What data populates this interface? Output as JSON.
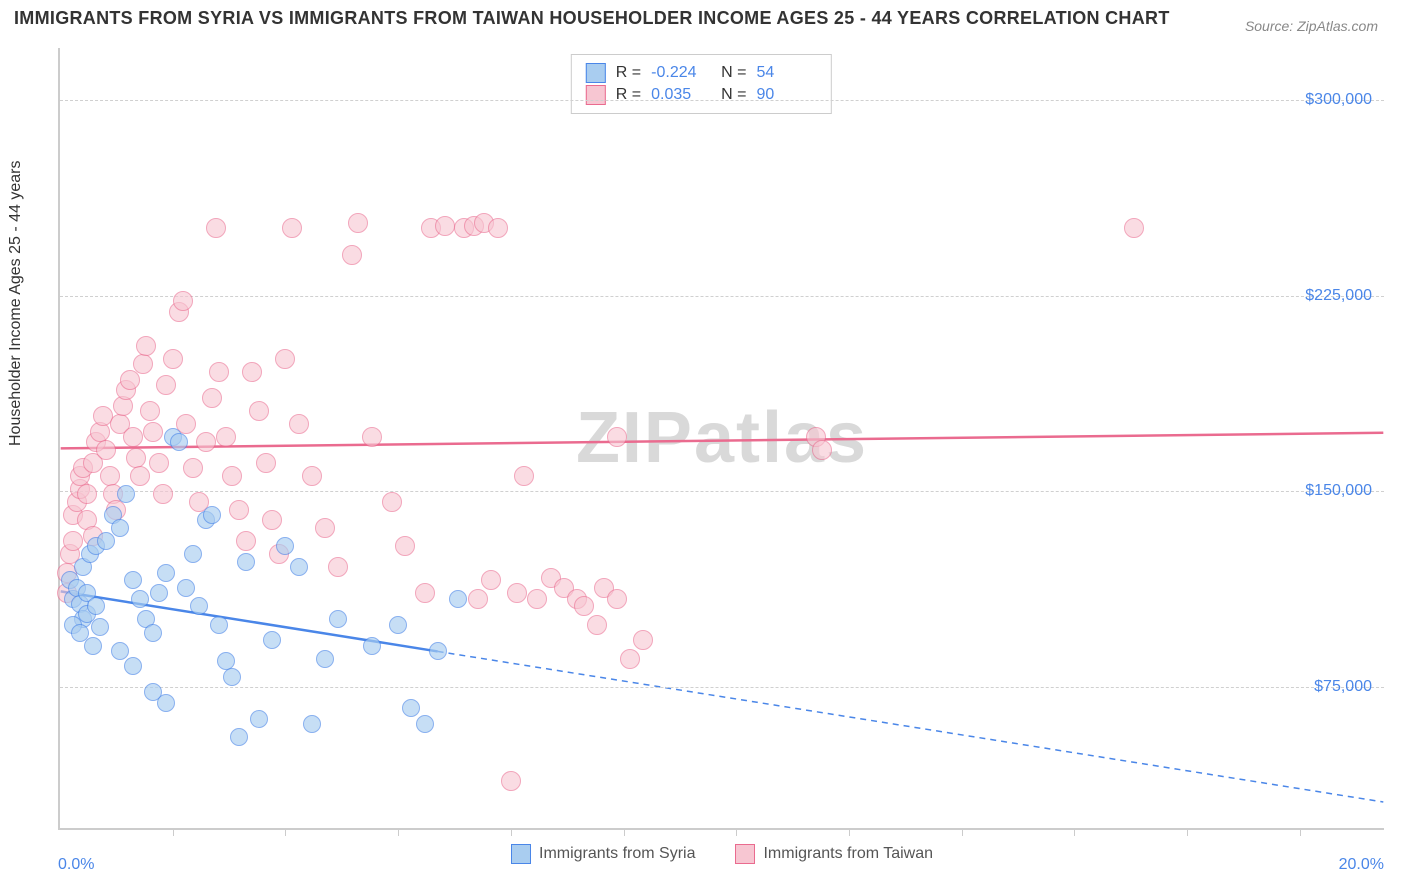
{
  "title": "IMMIGRANTS FROM SYRIA VS IMMIGRANTS FROM TAIWAN HOUSEHOLDER INCOME AGES 25 - 44 YEARS CORRELATION CHART",
  "source": "Source: ZipAtlas.com",
  "watermark": "ZIPatlas",
  "y_axis": {
    "label": "Householder Income Ages 25 - 44 years",
    "min": 20000,
    "max": 320000,
    "ticks": [
      75000,
      150000,
      225000,
      300000
    ],
    "tick_labels": [
      "$75,000",
      "$150,000",
      "$225,000",
      "$300,000"
    ],
    "label_color": "#4a86e8",
    "label_fontsize": 16
  },
  "x_axis": {
    "min": 0.0,
    "max": 20.0,
    "left_label": "0.0%",
    "right_label": "20.0%",
    "tick_positions": [
      1.7,
      3.4,
      5.1,
      6.8,
      8.5,
      10.2,
      11.9,
      13.6,
      15.3,
      17.0,
      18.7
    ],
    "label_color": "#4a86e8"
  },
  "series": {
    "syria": {
      "label": "Immigrants from Syria",
      "fill": "#a9cdf0",
      "stroke": "#4a86e8",
      "opacity": 0.65,
      "R": "-0.224",
      "N": "54",
      "trend": {
        "y_at_xmin": 111000,
        "y_at_xmax": 30000,
        "solid_until_x": 5.7,
        "stroke_width": 2.5
      },
      "radius": 9,
      "points": [
        [
          0.15,
          115000
        ],
        [
          0.2,
          108000
        ],
        [
          0.25,
          112000
        ],
        [
          0.3,
          106000
        ],
        [
          0.35,
          100000
        ],
        [
          0.4,
          110000
        ],
        [
          0.2,
          98000
        ],
        [
          0.3,
          95000
        ],
        [
          0.4,
          102000
        ],
        [
          0.5,
          90000
        ],
        [
          0.55,
          105000
        ],
        [
          0.6,
          97000
        ],
        [
          0.35,
          120000
        ],
        [
          0.45,
          125000
        ],
        [
          0.55,
          128000
        ],
        [
          0.7,
          130000
        ],
        [
          0.8,
          140000
        ],
        [
          0.9,
          135000
        ],
        [
          1.0,
          148000
        ],
        [
          1.1,
          115000
        ],
        [
          1.2,
          108000
        ],
        [
          1.3,
          100000
        ],
        [
          1.4,
          95000
        ],
        [
          1.5,
          110000
        ],
        [
          1.6,
          118000
        ],
        [
          1.7,
          170000
        ],
        [
          1.8,
          168000
        ],
        [
          1.9,
          112000
        ],
        [
          2.0,
          125000
        ],
        [
          2.1,
          105000
        ],
        [
          2.2,
          138000
        ],
        [
          2.3,
          140000
        ],
        [
          2.4,
          98000
        ],
        [
          2.5,
          84000
        ],
        [
          2.6,
          78000
        ],
        [
          2.7,
          55000
        ],
        [
          1.4,
          72000
        ],
        [
          1.6,
          68000
        ],
        [
          0.9,
          88000
        ],
        [
          1.1,
          82000
        ],
        [
          2.8,
          122000
        ],
        [
          3.0,
          62000
        ],
        [
          3.2,
          92000
        ],
        [
          3.4,
          128000
        ],
        [
          3.6,
          120000
        ],
        [
          3.8,
          60000
        ],
        [
          4.0,
          85000
        ],
        [
          4.2,
          100000
        ],
        [
          4.7,
          90000
        ],
        [
          5.1,
          98000
        ],
        [
          5.3,
          66000
        ],
        [
          5.5,
          60000
        ],
        [
          5.7,
          88000
        ],
        [
          6.0,
          108000
        ]
      ]
    },
    "taiwan": {
      "label": "Immigrants from Taiwan",
      "fill": "#f7c6d2",
      "stroke": "#ea6b8f",
      "opacity": 0.6,
      "R": "0.035",
      "N": "90",
      "trend": {
        "y_at_xmin": 166000,
        "y_at_xmax": 172000,
        "stroke_width": 2.5
      },
      "radius": 10,
      "points": [
        [
          0.1,
          110000
        ],
        [
          0.1,
          118000
        ],
        [
          0.15,
          125000
        ],
        [
          0.2,
          130000
        ],
        [
          0.2,
          140000
        ],
        [
          0.25,
          145000
        ],
        [
          0.3,
          150000
        ],
        [
          0.3,
          155000
        ],
        [
          0.35,
          158000
        ],
        [
          0.4,
          148000
        ],
        [
          0.4,
          138000
        ],
        [
          0.5,
          132000
        ],
        [
          0.5,
          160000
        ],
        [
          0.55,
          168000
        ],
        [
          0.6,
          172000
        ],
        [
          0.65,
          178000
        ],
        [
          0.7,
          165000
        ],
        [
          0.75,
          155000
        ],
        [
          0.8,
          148000
        ],
        [
          0.85,
          142000
        ],
        [
          0.9,
          175000
        ],
        [
          0.95,
          182000
        ],
        [
          1.0,
          188000
        ],
        [
          1.05,
          192000
        ],
        [
          1.1,
          170000
        ],
        [
          1.15,
          162000
        ],
        [
          1.2,
          155000
        ],
        [
          1.25,
          198000
        ],
        [
          1.3,
          205000
        ],
        [
          1.35,
          180000
        ],
        [
          1.4,
          172000
        ],
        [
          1.5,
          160000
        ],
        [
          1.55,
          148000
        ],
        [
          1.6,
          190000
        ],
        [
          1.7,
          200000
        ],
        [
          1.8,
          218000
        ],
        [
          1.85,
          222000
        ],
        [
          1.9,
          175000
        ],
        [
          2.0,
          158000
        ],
        [
          2.1,
          145000
        ],
        [
          2.2,
          168000
        ],
        [
          2.3,
          185000
        ],
        [
          2.35,
          250000
        ],
        [
          2.4,
          195000
        ],
        [
          2.5,
          170000
        ],
        [
          2.6,
          155000
        ],
        [
          2.7,
          142000
        ],
        [
          2.8,
          130000
        ],
        [
          2.9,
          195000
        ],
        [
          3.0,
          180000
        ],
        [
          3.1,
          160000
        ],
        [
          3.2,
          138000
        ],
        [
          3.3,
          125000
        ],
        [
          3.4,
          200000
        ],
        [
          3.5,
          250000
        ],
        [
          3.6,
          175000
        ],
        [
          3.8,
          155000
        ],
        [
          4.0,
          135000
        ],
        [
          4.2,
          120000
        ],
        [
          4.4,
          240000
        ],
        [
          4.5,
          252000
        ],
        [
          4.7,
          170000
        ],
        [
          5.0,
          145000
        ],
        [
          5.2,
          128000
        ],
        [
          5.5,
          110000
        ],
        [
          5.6,
          250000
        ],
        [
          5.8,
          251000
        ],
        [
          6.3,
          108000
        ],
        [
          6.1,
          250000
        ],
        [
          6.25,
          251000
        ],
        [
          6.4,
          252000
        ],
        [
          6.6,
          250000
        ],
        [
          6.5,
          115000
        ],
        [
          6.8,
          38000
        ],
        [
          6.9,
          110000
        ],
        [
          7.0,
          155000
        ],
        [
          7.2,
          108000
        ],
        [
          7.4,
          116000
        ],
        [
          7.6,
          112000
        ],
        [
          7.8,
          108000
        ],
        [
          7.9,
          105000
        ],
        [
          8.1,
          98000
        ],
        [
          8.2,
          112000
        ],
        [
          8.4,
          108000
        ],
        [
          8.6,
          85000
        ],
        [
          8.8,
          92000
        ],
        [
          11.4,
          170000
        ],
        [
          11.5,
          165000
        ],
        [
          8.4,
          170000
        ],
        [
          16.2,
          250000
        ]
      ]
    }
  },
  "legend_swatch": {
    "border_width": 1
  },
  "grid_color": "#d0d0d0",
  "axis_color": "#cccccc",
  "background": "#ffffff"
}
